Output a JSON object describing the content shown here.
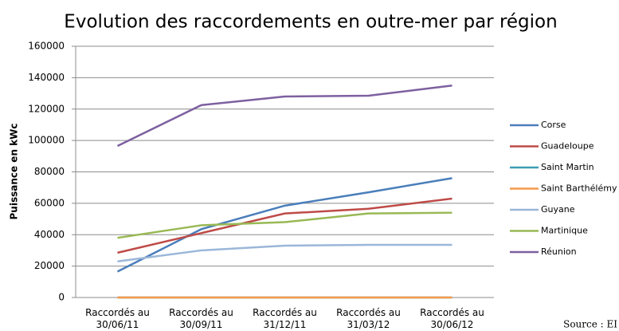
{
  "chart_data": {
    "type": "line",
    "title": "Evolution des raccordements en outre-mer par région",
    "y_label": "Puissance en kWc",
    "source": "Source : EI",
    "categories": [
      "Raccordés au 30/06/11",
      "Raccordés au 30/09/11",
      "Raccordés au 31/12/11",
      "Raccordés au 31/03/12",
      "Raccordés au 30/06/12"
    ],
    "series": [
      {
        "name": "Corse",
        "color": "#4a7ebb",
        "values": [
          16500,
          43500,
          58500,
          67000,
          76000
        ]
      },
      {
        "name": "Guadeloupe",
        "color": "#be4b48",
        "values": [
          28500,
          41000,
          53500,
          56500,
          63000
        ]
      },
      {
        "name": "Saint Martin",
        "color": "#3d9db3",
        "values": [
          0,
          0,
          0,
          0,
          0
        ]
      },
      {
        "name": "Saint Barthélémy",
        "color": "#f59a4a",
        "values": [
          0,
          0,
          0,
          0,
          0
        ]
      },
      {
        "name": "Guyane",
        "color": "#9bb7d9",
        "values": [
          23000,
          30000,
          33000,
          33500,
          33500
        ]
      },
      {
        "name": "Martinique",
        "color": "#98b954",
        "values": [
          38000,
          46000,
          48000,
          53500,
          54000
        ]
      },
      {
        "name": "Réunion",
        "color": "#7d60a0",
        "values": [
          96500,
          122500,
          128000,
          128500,
          135000
        ]
      }
    ],
    "ylim": [
      0,
      160000
    ],
    "yticks": [
      0,
      20000,
      40000,
      60000,
      80000,
      100000,
      120000,
      140000,
      160000
    ],
    "grid": true,
    "legend": "right"
  }
}
